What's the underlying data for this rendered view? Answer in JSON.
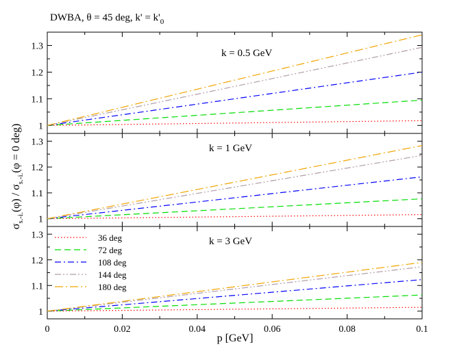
{
  "figure": {
    "title_parts": [
      "DWBA,  ",
      "θ",
      " = 45 deg,  k' = k'",
      "0"
    ],
    "ylabel_parts": [
      "σ",
      "s.-i.",
      "(φ) / σ",
      "s.-i.",
      "(φ = 0 deg)"
    ],
    "xlabel": "p [GeV]",
    "colors": {
      "36 deg": "#ff0000",
      "72 deg": "#00dd00",
      "108 deg": "#0000ff",
      "144 deg": "#b09ca8",
      "180 deg": "#f0a400"
    }
  },
  "chart_data": [
    {
      "type": "line",
      "annotation": "k = 0.5 GeV",
      "xlim": [
        0,
        0.1
      ],
      "ylim": [
        0.97,
        1.35
      ],
      "xticks": [
        0,
        0.02,
        0.04,
        0.06,
        0.08,
        0.1
      ],
      "yticks": [
        1,
        1.1,
        1.2,
        1.3
      ],
      "ytick_labels": [
        "1",
        "1.1",
        "1.2",
        "1.3"
      ],
      "x": [
        0,
        0.1
      ],
      "series": [
        {
          "name": "36 deg",
          "values": [
            1.0,
            1.018
          ]
        },
        {
          "name": "72 deg",
          "values": [
            1.0,
            1.095
          ]
        },
        {
          "name": "108 deg",
          "values": [
            1.0,
            1.2
          ]
        },
        {
          "name": "144 deg",
          "values": [
            1.0,
            1.293
          ]
        },
        {
          "name": "180 deg",
          "values": [
            1.0,
            1.34
          ]
        }
      ]
    },
    {
      "type": "line",
      "annotation": "k = 1 GeV",
      "xlim": [
        0,
        0.1
      ],
      "ylim": [
        0.97,
        1.33
      ],
      "xticks": [
        0,
        0.02,
        0.04,
        0.06,
        0.08,
        0.1
      ],
      "yticks": [
        1,
        1.1,
        1.2,
        1.3
      ],
      "ytick_labels": [
        "1",
        "1.1",
        "1.2",
        "1.3"
      ],
      "x": [
        0,
        0.1
      ],
      "series": [
        {
          "name": "36 deg",
          "values": [
            1.0,
            1.016
          ]
        },
        {
          "name": "72 deg",
          "values": [
            1.0,
            1.077
          ]
        },
        {
          "name": "108 deg",
          "values": [
            1.0,
            1.162
          ]
        },
        {
          "name": "144 deg",
          "values": [
            1.0,
            1.245
          ]
        },
        {
          "name": "180 deg",
          "values": [
            1.0,
            1.283
          ]
        }
      ]
    },
    {
      "type": "line",
      "annotation": "k = 3 GeV",
      "xlim": [
        0,
        0.1
      ],
      "ylim": [
        0.97,
        1.33
      ],
      "xticks": [
        0,
        0.02,
        0.04,
        0.06,
        0.08,
        0.1
      ],
      "xtick_labels": [
        "0",
        "0.02",
        "0.04",
        "0.06",
        "0.08",
        "0.1"
      ],
      "yticks": [
        1,
        1.1,
        1.2,
        1.3
      ],
      "ytick_labels": [
        "1",
        "1.1",
        "1.2",
        "1.3"
      ],
      "x": [
        0,
        0.1
      ],
      "legend": "top-left",
      "series": [
        {
          "name": "36 deg",
          "values": [
            1.0,
            1.015
          ]
        },
        {
          "name": "72 deg",
          "values": [
            1.0,
            1.063
          ]
        },
        {
          "name": "108 deg",
          "values": [
            1.0,
            1.123
          ]
        },
        {
          "name": "144 deg",
          "values": [
            1.0,
            1.173
          ]
        },
        {
          "name": "180 deg",
          "values": [
            1.0,
            1.19
          ]
        }
      ]
    }
  ]
}
